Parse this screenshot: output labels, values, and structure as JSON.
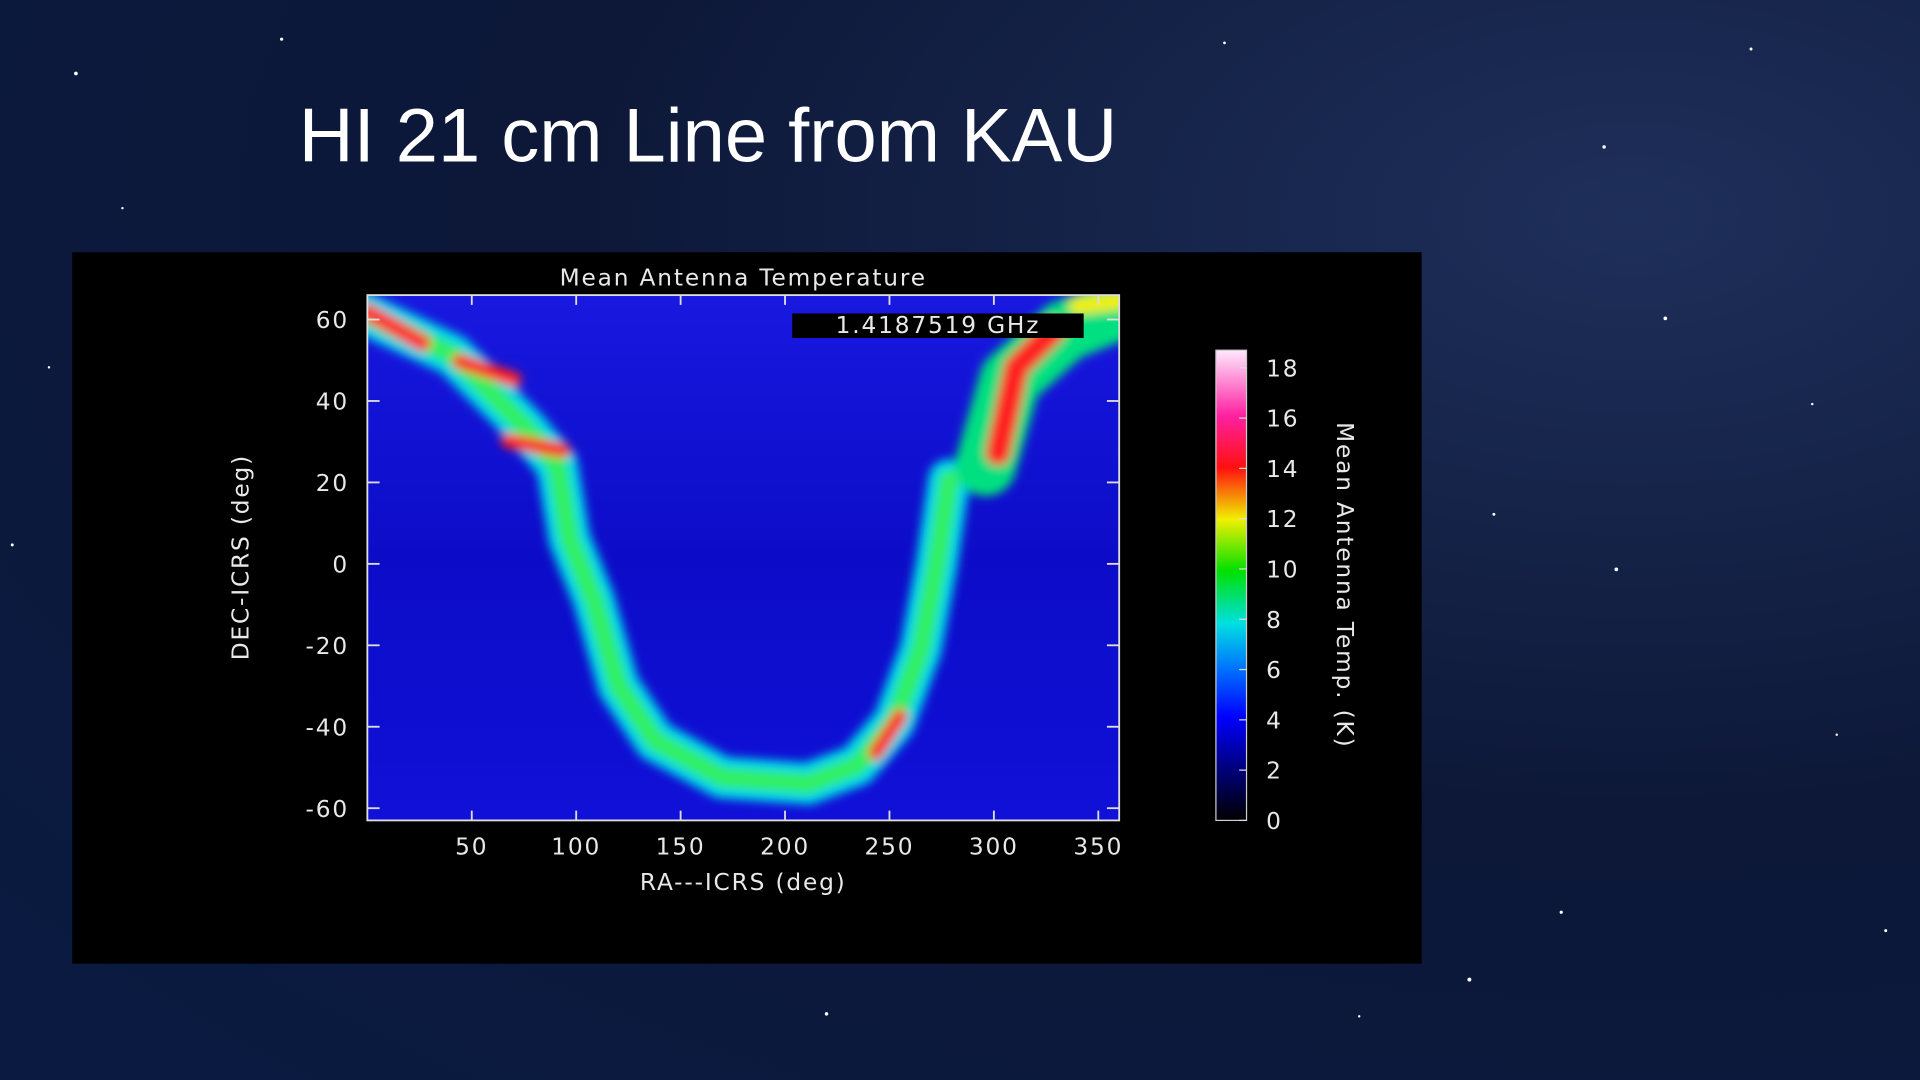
{
  "slide_title": "HI 21 cm Line from KAU",
  "chart_data": {
    "type": "heatmap",
    "title": "Mean Antenna Temperature",
    "annotation": "1.4187519 GHz",
    "x_label": "RA---ICRS (deg)",
    "y_label": "DEC-ICRS (deg)",
    "xlim": [
      0,
      360
    ],
    "ylim": [
      -63,
      66
    ],
    "xticks": [
      50,
      100,
      150,
      200,
      250,
      300,
      350
    ],
    "yticks": [
      60,
      40,
      20,
      0,
      -20,
      -40,
      -60
    ],
    "colorbar_label": "Mean Antenna Temp. (K)",
    "colorbar_lim": [
      0,
      18.7
    ],
    "colorbar_ticks": [
      18,
      16,
      14,
      12,
      10,
      8,
      6,
      4,
      2,
      0
    ]
  }
}
